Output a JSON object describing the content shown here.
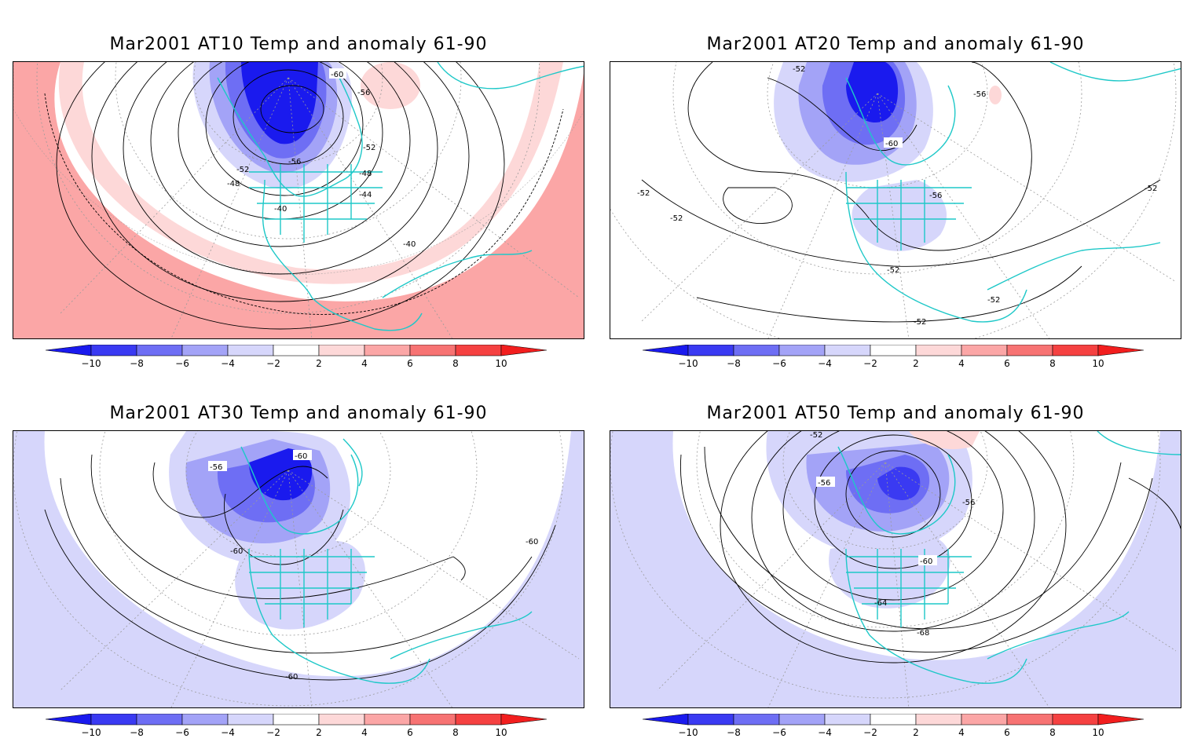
{
  "panels": [
    {
      "id": "at10",
      "title": "Mar2001 AT10 Temp and anomaly 61-90",
      "anomaly_sign": "mixed",
      "contour_labels": [
        "-60",
        "-56",
        "-52",
        "-52",
        "-48",
        "-48",
        "-44",
        "-40",
        "-40",
        "-56"
      ]
    },
    {
      "id": "at20",
      "title": "Mar2001 AT20 Temp and anomaly 61-90",
      "anomaly_sign": "negative",
      "contour_labels": [
        "-52",
        "-56",
        "-60",
        "-56",
        "-52",
        "-52",
        "-52",
        "-52",
        "-52",
        "-52"
      ]
    },
    {
      "id": "at30",
      "title": "Mar2001 AT30 Temp and anomaly 61-90",
      "anomaly_sign": "negative",
      "contour_labels": [
        "-60",
        "-56",
        "-60",
        "-60",
        "-60"
      ]
    },
    {
      "id": "at50",
      "title": "Mar2001 AT50 Temp and anomaly 61-90",
      "anomaly_sign": "negative",
      "contour_labels": [
        "-52",
        "-56",
        "-56",
        "-60",
        "-64",
        "-68"
      ]
    }
  ],
  "colorbar": {
    "tick_labels": [
      "−10",
      "−8",
      "−6",
      "−4",
      "−2",
      "2",
      "4",
      "6",
      "8",
      "10"
    ],
    "colors": [
      "#1a1aee",
      "#3a3af2",
      "#6e6ef4",
      "#a3a3f7",
      "#d6d6fb",
      "#ffffff",
      "#fdd8d8",
      "#fba6a6",
      "#f77373",
      "#f54141",
      "#f21e1e"
    ]
  },
  "colors": {
    "coastline": "#1ec8c8",
    "contour": "#000000",
    "graticule": "#9a9a9a"
  }
}
